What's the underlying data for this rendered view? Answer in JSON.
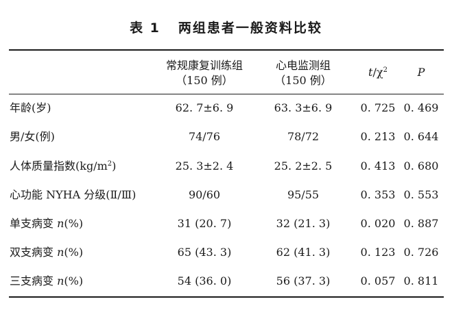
{
  "table": {
    "title_label": "表 1",
    "title_text": "两组患者一般资料比较",
    "headers": {
      "group_a_name": "常规康复训练组",
      "group_a_n": "（150 例）",
      "group_b_name": "心电监测组",
      "group_b_n": "（150 例）",
      "stat_t": "t",
      "stat_sep": "/χ",
      "stat_sup": "2",
      "p": "P"
    },
    "rows": [
      {
        "label": "年龄(岁)",
        "a": "62. 7±6. 9",
        "b": "63. 3±6. 9",
        "stat": "0. 725",
        "p": "0. 469"
      },
      {
        "label": "男/女(例)",
        "a": "74/76",
        "b": "78/72",
        "stat": "0. 213",
        "p": "0. 644"
      },
      {
        "label_main": "人体质量指数(kg/m",
        "label_sup": "2",
        "label_end": ")",
        "a": "25. 3±2. 4",
        "b": "25. 2±2. 5",
        "stat": "0. 413",
        "p": "0. 680"
      },
      {
        "label": "心功能 NYHA 分级(Ⅱ/Ⅲ)",
        "a": "90/60",
        "b": "95/55",
        "stat": "0. 353",
        "p": "0. 553"
      },
      {
        "label_main": "单支病变 ",
        "label_n": "n",
        "label_end": "(%)",
        "a": "31 (20. 7)",
        "b": "32 (21. 3)",
        "stat": "0. 020",
        "p": "0. 887"
      },
      {
        "label_main": "双支病变 ",
        "label_n": "n",
        "label_end": "(%)",
        "a": "65 (43. 3)",
        "b": "62 (41. 3)",
        "stat": "0. 123",
        "p": "0. 726"
      },
      {
        "label_main": "三支病变 ",
        "label_n": "n",
        "label_end": "(%)",
        "a": "54 (36. 0)",
        "b": "56 (37. 3)",
        "stat": "0. 057",
        "p": "0. 811"
      }
    ]
  }
}
